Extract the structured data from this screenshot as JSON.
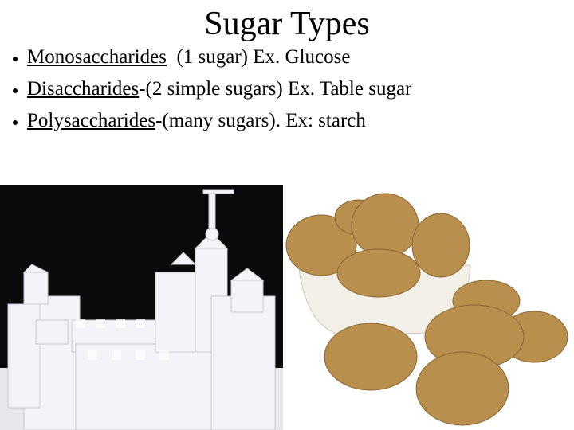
{
  "title": "Sugar Types",
  "bullets": [
    {
      "term": "Monosaccharides",
      "text": "  (1 sugar) Ex. Glucose"
    },
    {
      "term": "Disaccharides",
      "text": "-(2 simple sugars) Ex. Table sugar"
    },
    {
      "term": "Polysaccharides",
      "text": "-(many sugars). Ex: starch"
    }
  ]
}
